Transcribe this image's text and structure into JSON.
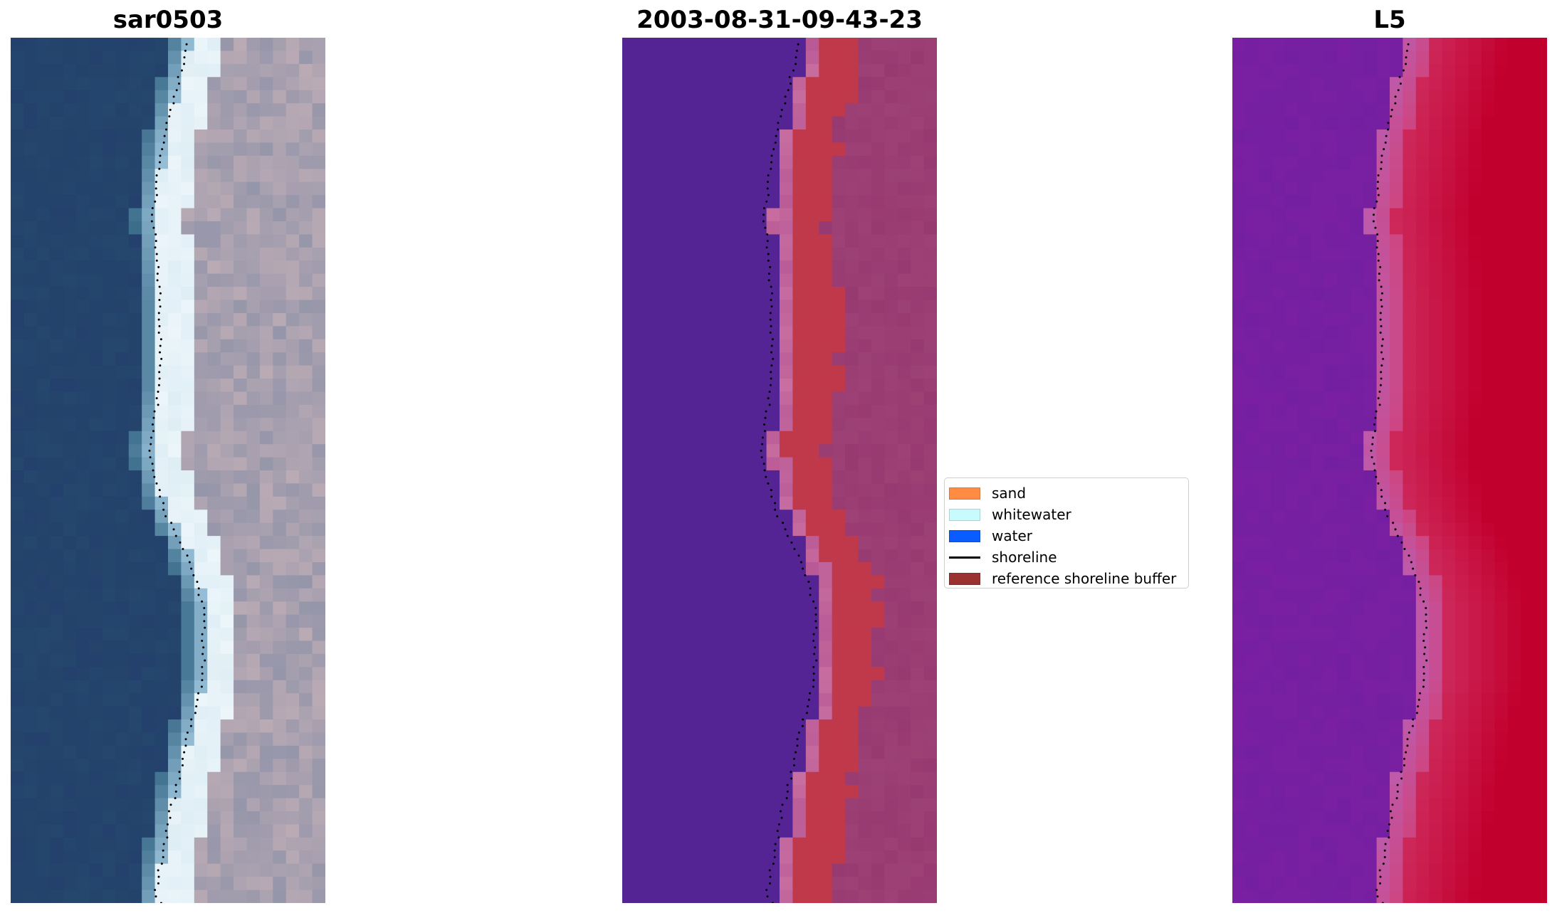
{
  "titles": {
    "rgb": "sar0503",
    "classified": "2003-08-31-09-43-23",
    "mndwi": "L5"
  },
  "legend": {
    "items": [
      {
        "label": "sand",
        "type": "patch",
        "color": "#ff8c42"
      },
      {
        "label": "whitewater",
        "type": "patch",
        "color": "#c8fbfb"
      },
      {
        "label": "water",
        "type": "patch",
        "color": "#0a5cff"
      },
      {
        "label": "shoreline",
        "type": "line",
        "color": "#000000"
      },
      {
        "label": "reference shoreline buffer",
        "type": "patch",
        "color": "#9b3232"
      }
    ]
  },
  "colors": {
    "water_rgb": "#23416c",
    "classified_water": "#542494",
    "classified_sand": "#c0394a",
    "classified_land": "#983a72",
    "mndwi_water": "#7a1fa2",
    "mndwi_land": "#c2002e"
  }
}
